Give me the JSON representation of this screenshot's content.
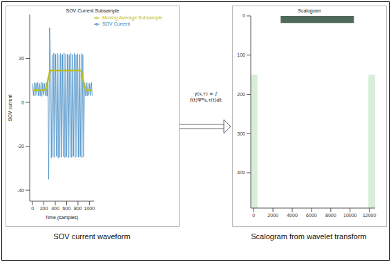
{
  "chart_data": [
    {
      "type": "line",
      "title": "SOV Current Subsample",
      "x_label": "Time (samples)",
      "y_label": "SOV current",
      "x": [
        0,
        15,
        30,
        45,
        60,
        75,
        90,
        105,
        120,
        135,
        150,
        165,
        180,
        195,
        210,
        225,
        240,
        255,
        270,
        285,
        300,
        315,
        330,
        345,
        360,
        375,
        390,
        405,
        420,
        435,
        450,
        465,
        480,
        495,
        510,
        525,
        540,
        555,
        570,
        585,
        600,
        615,
        630,
        645,
        660,
        675,
        690,
        705,
        720,
        735,
        750,
        765,
        780,
        795,
        810,
        825,
        840,
        855,
        870,
        885,
        900,
        915,
        930,
        945,
        960,
        975,
        990,
        1005,
        1020,
        1035,
        1050
      ],
      "series": [
        {
          "name": "SOV Current",
          "color": "#2f7fbf",
          "values": [
            8.6,
            3.1,
            9.0,
            2.8,
            8.8,
            3.3,
            9.1,
            2.9,
            8.7,
            3.0,
            9.2,
            2.7,
            8.9,
            3.2,
            8.6,
            3.0,
            9.0,
            2.8,
            8.8,
            -35,
            34,
            22.1,
            -25.3,
            21.6,
            -24.8,
            22.4,
            -25.1,
            21.9,
            -24.6,
            22.3,
            -25.4,
            21.7,
            -24.9,
            22.2,
            -25.0,
            21.8,
            -24.7,
            22.5,
            -25.2,
            21.9,
            -24.8,
            22.0,
            -25.3,
            21.6,
            -24.9,
            22.3,
            -25.1,
            21.8,
            -24.6,
            22.4,
            -25.2,
            21.7,
            -24.8,
            22.1,
            -25.0,
            21.9,
            -24.7,
            22.2,
            -25.3,
            21.8,
            -24.9,
            8.7,
            3.0,
            9.1,
            2.8,
            8.9,
            3.2,
            8.6,
            3.1,
            9.0,
            2.9
          ]
        },
        {
          "name": "Moving Average Subsample",
          "color": "#bcbd22",
          "values": [
            5.5,
            5.5,
            5.5,
            5.5,
            5.5,
            5.5,
            5.5,
            5.5,
            5.5,
            5.5,
            5.5,
            5.5,
            5.5,
            5.5,
            5.5,
            5.6,
            6.5,
            8,
            10,
            12,
            13.5,
            14.5,
            14.5,
            14.5,
            14.5,
            14.5,
            14.5,
            14.5,
            14.5,
            14.5,
            14.5,
            14.5,
            14.5,
            14.5,
            14.5,
            14.5,
            14.5,
            14.5,
            14.5,
            14.5,
            14.5,
            14.5,
            14.5,
            14.5,
            14.5,
            14.5,
            14.5,
            14.5,
            14.5,
            14.5,
            14.5,
            14.5,
            14.5,
            14.5,
            14.5,
            14.5,
            14.5,
            14.5,
            13,
            11,
            9,
            7,
            6,
            5.5,
            5.5,
            5.5,
            5.5,
            5.5,
            5.5,
            5.5,
            5.5
          ]
        }
      ],
      "xlim": [
        -50,
        1080
      ],
      "xticks": [
        0,
        200,
        400,
        600,
        800,
        1000
      ],
      "ylim": [
        -45,
        40
      ],
      "yticks": [
        -40,
        -20,
        0,
        20
      ],
      "legend": "upper right",
      "grid": false
    },
    {
      "type": "heatmap",
      "title": "Scalogram",
      "xlim": [
        -300,
        12600
      ],
      "xticks": [
        0,
        2000,
        4000,
        6000,
        8000,
        10000,
        12000
      ],
      "ylim": [
        0,
        490
      ],
      "yticks": [
        0,
        100,
        200,
        300,
        400
      ],
      "regions": [
        {
          "x": [
            2800,
            10400
          ],
          "y": [
            0,
            18
          ],
          "color": "#3d5a48"
        },
        {
          "x": [
            -300,
            400
          ],
          "y": [
            150,
            490
          ],
          "color": "#bfe3bf"
        },
        {
          "x": [
            11900,
            12600
          ],
          "y": [
            150,
            490
          ],
          "color": "#bfe3bf"
        }
      ],
      "grid": false
    }
  ],
  "arrow_label": "γ(s,τ) = ∫ f(t)Ψ*s,τ(t)dt",
  "captions": [
    "SOV current waveform",
    "Scalogram from wavelet transform"
  ]
}
